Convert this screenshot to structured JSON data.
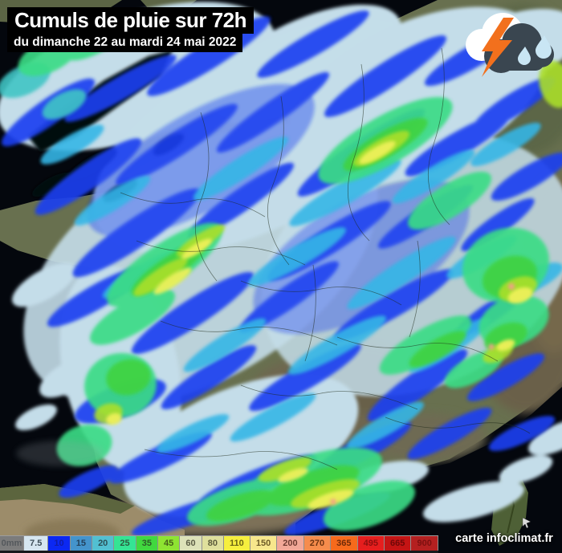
{
  "header": {
    "title": "Cumuls de pluie sur 72h",
    "subtitle": "du dimanche 22 au mardi 24 mai 2022"
  },
  "credit": {
    "label": "carte infoclimat.fr"
  },
  "icons": {
    "weather": "storm-rain-cloud-icon",
    "cursor": "cursor-icon"
  },
  "legend": {
    "unit": "mm",
    "entries": [
      {
        "label": "0mm",
        "color": "#7c7c7c",
        "text_color": "#54585c"
      },
      {
        "label": "7.5",
        "color": "#d6e6f0",
        "text_color": "#3e4e58"
      },
      {
        "label": "10",
        "color": "#0b28f2",
        "text_color": "#101ba8"
      },
      {
        "label": "15",
        "color": "#4494cc",
        "text_color": "#23415c"
      },
      {
        "label": "20",
        "color": "#52c0d2",
        "text_color": "#2c5058"
      },
      {
        "label": "25",
        "color": "#35e494",
        "text_color": "#2c5c40"
      },
      {
        "label": "35",
        "color": "#41d83f",
        "text_color": "#2d5c28"
      },
      {
        "label": "45",
        "color": "#8ee432",
        "text_color": "#46621a"
      },
      {
        "label": "60",
        "color": "#dde2b8",
        "text_color": "#5c5e46"
      },
      {
        "label": "80",
        "color": "#dfe09c",
        "text_color": "#5c5c3c"
      },
      {
        "label": "110",
        "color": "#f6ef3e",
        "text_color": "#6a6414"
      },
      {
        "label": "150",
        "color": "#f7e78c",
        "text_color": "#6e5c28"
      },
      {
        "label": "200",
        "color": "#f2a898",
        "text_color": "#6e3a30"
      },
      {
        "label": "270",
        "color": "#f68c4c",
        "text_color": "#6e3410"
      },
      {
        "label": "365",
        "color": "#f66a1c",
        "text_color": "#6e2a08"
      },
      {
        "label": "495",
        "color": "#e61e1e",
        "text_color": "#8c0e0e"
      },
      {
        "label": "665",
        "color": "#c41414",
        "text_color": "#6e0808"
      },
      {
        "label": "900",
        "color": "#b42020",
        "text_color": "#7c1010"
      }
    ]
  },
  "map_palette": {
    "sea": "#04070d",
    "land_olive": "#68704f",
    "land_tan": "#9c8c6a",
    "rain_pale": "#c4dde9",
    "rain_blue": "#1d40f0",
    "rain_cyan": "#36b6e6",
    "rain_spring": "#3bdc85",
    "rain_green": "#3fd23f",
    "rain_yellow_green": "#abdf2c",
    "rain_yellow": "#eef05a",
    "rain_extreme_spot": "#f2a088"
  }
}
